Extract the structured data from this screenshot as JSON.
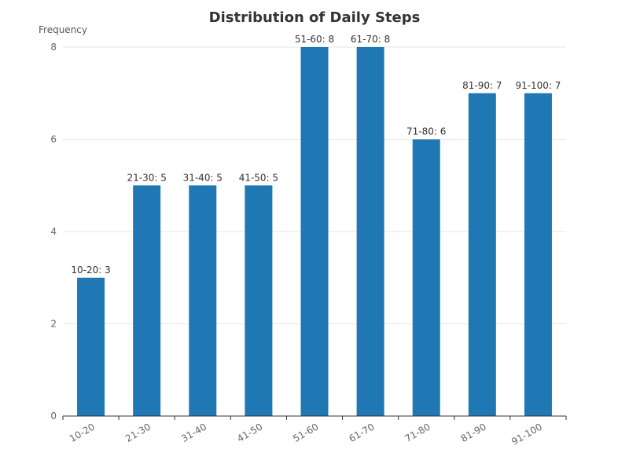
{
  "chart_data": {
    "type": "bar",
    "title": "Distribution of Daily Steps",
    "xlabel": "",
    "ylabel": "Frequency",
    "categories": [
      "10-20",
      "21-30",
      "31-40",
      "41-50",
      "51-60",
      "61-70",
      "71-80",
      "81-90",
      "91-100"
    ],
    "values": [
      3,
      5,
      5,
      5,
      8,
      8,
      6,
      7,
      7
    ],
    "data_labels": [
      "10-20: 3",
      "21-30: 5",
      "31-40: 5",
      "41-50: 5",
      "51-60: 8",
      "61-70: 8",
      "71-80: 6",
      "81-90: 7",
      "91-100: 7"
    ],
    "y_ticks": [
      0,
      2,
      4,
      6,
      8
    ],
    "ylim": [
      0,
      8
    ],
    "grid": true,
    "legend": "none",
    "bar_color": "#1f77b4"
  }
}
